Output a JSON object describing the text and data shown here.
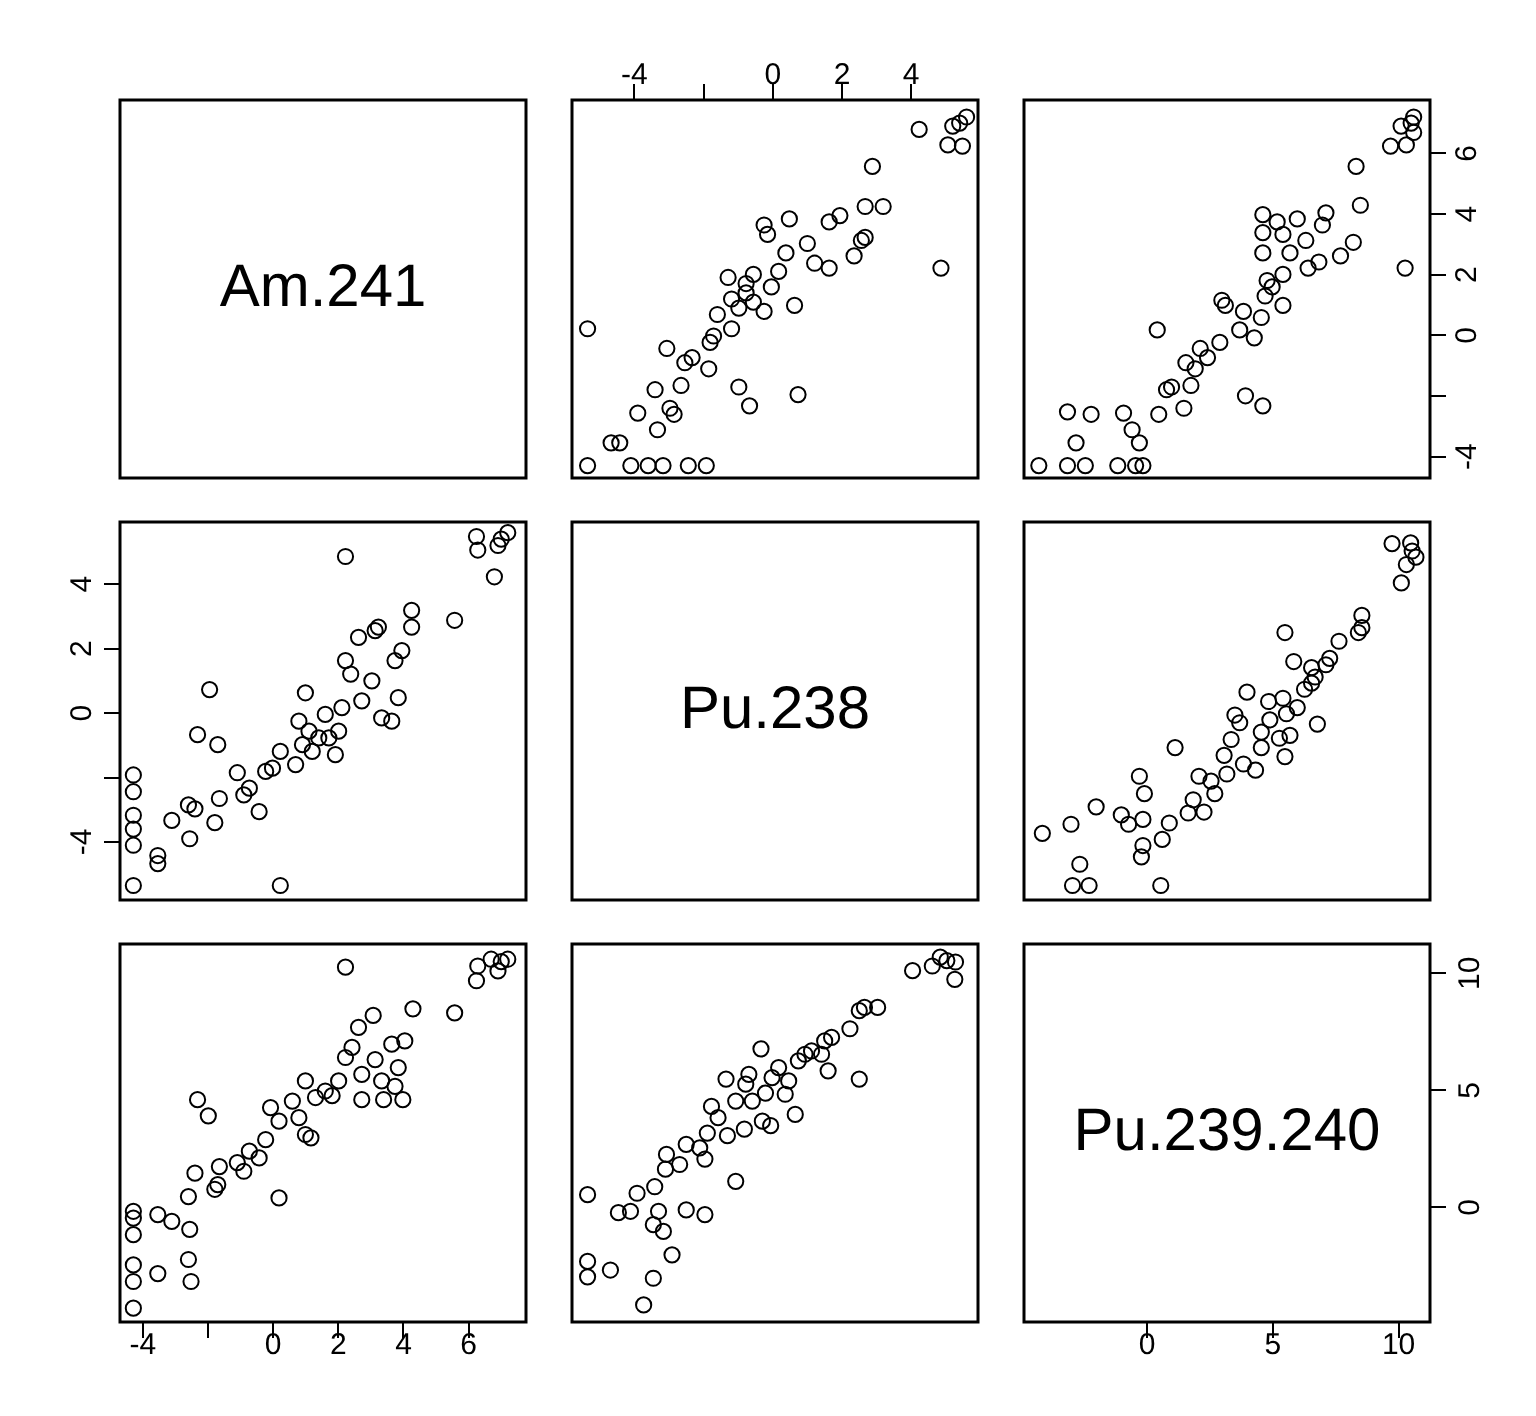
{
  "chart_data": [
    {
      "type": "other",
      "title": "Am.241"
    },
    {
      "type": "scatter",
      "color": "#000000",
      "marker": "circle",
      "tick_labels": "x",
      "xlim": [
        -5.8,
        5.93
      ],
      "ylim": [
        -4.7,
        7.76
      ],
      "xticks": [
        -4,
        {
          "value": -2,
          "label": null
        },
        0,
        2,
        4
      ],
      "x": [
        -1.92,
        -2.44,
        -3.17,
        -3.6,
        -4.1,
        -5.35,
        -4.42,
        -4.67,
        -3.33,
        -2.85,
        -3.9,
        -2.97,
        -0.67,
        0.73,
        -3.4,
        -0.98,
        -2.65,
        -1.85,
        -2.54,
        -2.33,
        -3.06,
        -1.81,
        -1.71,
        -1.19,
        -5.35,
        -1.6,
        -0.25,
        -0.98,
        0.63,
        -0.56,
        -1.19,
        -0.77,
        -0.04,
        -0.77,
        -1.29,
        -0.56,
        0.17,
        4.86,
        1.63,
        1.21,
        2.35,
        0.38,
        1.0,
        2.56,
        2.67,
        -0.15,
        -0.25,
        1.63,
        0.48,
        1.94,
        3.19,
        2.67,
        2.88,
        5.48,
        5.06,
        4.23,
        5.4,
        5.6,
        5.2
      ],
      "values": [
        -4.29,
        -4.29,
        -4.29,
        -4.29,
        -4.29,
        -4.29,
        -3.54,
        -3.54,
        -3.11,
        -2.6,
        -2.56,
        -2.4,
        -2.32,
        -1.95,
        -1.79,
        -1.7,
        -1.65,
        -1.1,
        -0.9,
        -0.73,
        -0.43,
        -0.23,
        -0.02,
        0.22,
        0.22,
        0.69,
        0.79,
        0.9,
        0.99,
        1.1,
        1.2,
        1.4,
        1.6,
        1.71,
        1.91,
        2.01,
        2.11,
        2.22,
        2.22,
        2.38,
        2.62,
        2.72,
        3.03,
        3.13,
        3.23,
        3.33,
        3.64,
        3.74,
        3.84,
        3.95,
        4.25,
        4.25,
        5.57,
        6.24,
        6.28,
        6.79,
        7.0,
        7.2,
        6.9
      ]
    },
    {
      "type": "scatter",
      "color": "#000000",
      "marker": "circle",
      "tick_labels": "y",
      "xlim": [
        -4.9,
        11.25
      ],
      "ylim": [
        -4.7,
        7.76
      ],
      "yticks": [
        -4,
        {
          "value": -2,
          "label": null
        },
        0,
        2,
        4,
        6
      ],
      "x": [
        -4.31,
        -3.17,
        -2.46,
        -1.17,
        -0.46,
        -0.17,
        -2.83,
        -0.31,
        -0.6,
        0.46,
        -0.94,
        -2.23,
        -3.17,
        1.46,
        4.6,
        3.91,
        0.77,
        0.97,
        1.74,
        1.91,
        1.54,
        2.4,
        2.11,
        2.89,
        4.26,
        0.4,
        3.68,
        4.54,
        3.83,
        5.4,
        3.11,
        2.97,
        4.69,
        4.97,
        4.77,
        5.4,
        10.26,
        6.4,
        6.83,
        7.69,
        4.6,
        5.68,
        8.2,
        6.31,
        5.4,
        4.6,
        6.97,
        5.17,
        5.97,
        4.6,
        7.11,
        8.48,
        8.31,
        9.68,
        10.31,
        10.6,
        10.5,
        10.6,
        10.1
      ],
      "values": [
        -4.29,
        -4.29,
        -4.29,
        -4.29,
        -4.29,
        -4.29,
        -3.54,
        -3.54,
        -3.11,
        -2.6,
        -2.56,
        -2.6,
        -2.52,
        -2.4,
        -2.32,
        -1.99,
        -1.79,
        -1.7,
        -1.65,
        -1.1,
        -0.9,
        -0.73,
        -0.43,
        -0.23,
        -0.08,
        0.18,
        0.18,
        0.59,
        0.79,
        0.99,
        0.99,
        1.16,
        1.3,
        1.6,
        1.81,
        2.01,
        2.22,
        2.22,
        2.42,
        2.62,
        2.72,
        2.72,
        3.07,
        3.13,
        3.33,
        3.39,
        3.64,
        3.74,
        3.84,
        3.98,
        4.04,
        4.29,
        5.57,
        6.24,
        6.28,
        6.69,
        7.0,
        7.2,
        6.9
      ]
    },
    {
      "type": "scatter",
      "color": "#000000",
      "marker": "circle",
      "tick_labels": "y",
      "xlim": [
        -4.7,
        7.76
      ],
      "ylim": [
        -5.8,
        5.93
      ],
      "yticks": [
        -4,
        {
          "value": -2,
          "label": null
        },
        0,
        2,
        4
      ],
      "x": [
        -4.29,
        -4.29,
        -4.29,
        -4.29,
        -4.29,
        -4.29,
        -3.54,
        -3.54,
        -3.11,
        -2.6,
        -2.56,
        -2.4,
        -2.32,
        -1.95,
        -1.79,
        -1.7,
        -1.65,
        -1.1,
        -0.9,
        -0.73,
        -0.43,
        -0.23,
        -0.02,
        0.22,
        0.22,
        0.69,
        0.79,
        0.9,
        0.99,
        1.1,
        1.2,
        1.4,
        1.6,
        1.71,
        1.91,
        2.01,
        2.11,
        2.22,
        2.22,
        2.38,
        2.62,
        2.72,
        3.03,
        3.13,
        3.23,
        3.33,
        3.64,
        3.74,
        3.84,
        3.95,
        4.25,
        4.25,
        5.57,
        6.24,
        6.28,
        6.79,
        7.0,
        7.2,
        6.9
      ],
      "values": [
        -1.92,
        -2.44,
        -3.17,
        -3.6,
        -4.1,
        -5.35,
        -4.42,
        -4.67,
        -3.33,
        -2.85,
        -3.9,
        -2.97,
        -0.67,
        0.73,
        -3.4,
        -0.98,
        -2.65,
        -1.85,
        -2.54,
        -2.33,
        -3.06,
        -1.81,
        -1.71,
        -1.19,
        -5.35,
        -1.6,
        -0.25,
        -0.98,
        0.63,
        -0.56,
        -1.19,
        -0.77,
        -0.04,
        -0.77,
        -1.29,
        -0.56,
        0.17,
        4.86,
        1.63,
        1.21,
        2.35,
        0.38,
        1.0,
        2.56,
        2.67,
        -0.15,
        -0.25,
        1.63,
        0.48,
        1.94,
        3.19,
        2.67,
        2.88,
        5.48,
        5.06,
        4.23,
        5.4,
        5.6,
        5.2
      ]
    },
    {
      "type": "other",
      "title": "Pu.238"
    },
    {
      "type": "scatter",
      "color": "#000000",
      "marker": "circle",
      "tick_labels": false,
      "xlim": [
        -4.9,
        11.25
      ],
      "ylim": [
        -5.8,
        5.93
      ],
      "x": [
        0.54,
        -2.31,
        -2.97,
        -2.68,
        -0.23,
        -0.17,
        0.6,
        -4.17,
        -3.03,
        0.88,
        -0.74,
        -0.17,
        -1.03,
        1.63,
        2.26,
        -2.03,
        1.83,
        -0.11,
        2.69,
        2.54,
        2.06,
        -0.31,
        3.17,
        4.31,
        3.83,
        5.48,
        3.06,
        1.11,
        4.54,
        3.34,
        5.26,
        5.68,
        4.54,
        6.77,
        3.68,
        4.88,
        3.49,
        5.54,
        5.97,
        4.83,
        5.4,
        3.97,
        6.26,
        6.54,
        6.68,
        6.54,
        7.11,
        5.83,
        7.26,
        7.63,
        5.48,
        8.4,
        8.54,
        8.54,
        10.11,
        10.31,
        10.69,
        10.54,
        10.48,
        9.74
      ],
      "values": [
        -5.35,
        -5.35,
        -5.35,
        -4.69,
        -4.46,
        -4.11,
        -3.92,
        -3.73,
        -3.45,
        -3.41,
        -3.45,
        -3.3,
        -3.16,
        -3.1,
        -3.07,
        -2.91,
        -2.69,
        -2.5,
        -2.5,
        -2.11,
        -1.96,
        -1.96,
        -1.89,
        -1.77,
        -1.58,
        -1.35,
        -1.31,
        -1.07,
        -1.07,
        -0.82,
        -0.78,
        -0.69,
        -0.59,
        -0.34,
        -0.3,
        -0.21,
        -0.06,
        -0.02,
        0.17,
        0.36,
        0.46,
        0.65,
        0.74,
        0.93,
        1.12,
        1.41,
        1.5,
        1.6,
        1.7,
        2.23,
        2.5,
        2.5,
        2.65,
        3.03,
        4.04,
        4.61,
        4.84,
        5.03,
        5.28,
        5.26
      ]
    },
    {
      "type": "scatter",
      "color": "#000000",
      "marker": "circle",
      "tick_labels": "x",
      "xlim": [
        -4.7,
        7.76
      ],
      "ylim": [
        -4.9,
        11.25
      ],
      "xticks": [
        -4,
        {
          "value": -2,
          "label": null
        },
        0,
        2,
        4,
        6
      ],
      "x": [
        -4.29,
        -4.29,
        -4.29,
        -4.29,
        -4.29,
        -4.29,
        -3.54,
        -3.54,
        -3.11,
        -2.6,
        -2.56,
        -2.6,
        -2.52,
        -2.4,
        -2.32,
        -1.99,
        -1.79,
        -1.7,
        -1.65,
        -1.1,
        -0.9,
        -0.73,
        -0.43,
        -0.23,
        -0.08,
        0.18,
        0.18,
        0.59,
        0.79,
        0.99,
        0.99,
        1.16,
        1.3,
        1.6,
        1.81,
        2.01,
        2.22,
        2.22,
        2.42,
        2.62,
        2.72,
        2.72,
        3.07,
        3.13,
        3.33,
        3.39,
        3.64,
        3.74,
        3.84,
        3.98,
        4.04,
        4.29,
        5.57,
        6.24,
        6.28,
        6.69,
        7.0,
        7.2,
        6.9
      ],
      "values": [
        -4.31,
        -3.17,
        -2.46,
        -1.17,
        -0.46,
        -0.17,
        -2.83,
        -0.31,
        -0.6,
        0.46,
        -0.94,
        -2.23,
        -3.17,
        1.46,
        4.6,
        3.91,
        0.77,
        0.97,
        1.74,
        1.91,
        1.54,
        2.4,
        2.11,
        2.89,
        4.26,
        0.4,
        3.68,
        4.54,
        3.83,
        5.4,
        3.11,
        2.97,
        4.69,
        4.97,
        4.77,
        5.4,
        10.26,
        6.4,
        6.83,
        7.69,
        4.6,
        5.68,
        8.2,
        6.31,
        5.4,
        4.6,
        6.97,
        5.17,
        5.97,
        4.6,
        7.11,
        8.48,
        8.31,
        9.68,
        10.31,
        10.6,
        10.5,
        10.6,
        10.1
      ]
    },
    {
      "type": "scatter",
      "color": "#000000",
      "marker": "circle",
      "tick_labels": false,
      "xlim": [
        -5.8,
        5.93
      ],
      "ylim": [
        -4.9,
        11.25
      ],
      "x": [
        -5.35,
        -5.35,
        -5.35,
        -4.69,
        -4.46,
        -4.11,
        -3.92,
        -3.73,
        -3.45,
        -3.41,
        -3.45,
        -3.3,
        -3.16,
        -3.1,
        -3.07,
        -2.91,
        -2.69,
        -2.5,
        -2.5,
        -2.11,
        -1.96,
        -1.96,
        -1.89,
        -1.77,
        -1.58,
        -1.35,
        -1.31,
        -1.07,
        -1.07,
        -0.82,
        -0.78,
        -0.69,
        -0.59,
        -0.34,
        -0.3,
        -0.21,
        -0.06,
        -0.02,
        0.17,
        0.36,
        0.46,
        0.65,
        0.74,
        0.93,
        1.12,
        1.41,
        1.5,
        1.6,
        1.7,
        2.23,
        2.5,
        2.5,
        2.65,
        3.03,
        4.04,
        4.61,
        4.84,
        5.03,
        5.28,
        5.26
      ],
      "values": [
        0.54,
        -2.31,
        -2.97,
        -2.68,
        -0.23,
        -0.17,
        0.6,
        -4.17,
        -3.03,
        0.88,
        -0.74,
        -0.17,
        -1.03,
        1.63,
        2.26,
        -2.03,
        1.83,
        -0.11,
        2.69,
        2.54,
        2.06,
        -0.31,
        3.17,
        4.31,
        3.83,
        5.48,
        3.06,
        1.11,
        4.54,
        3.34,
        5.26,
        5.68,
        4.54,
        6.77,
        3.68,
        4.88,
        3.49,
        5.54,
        5.97,
        4.83,
        5.4,
        3.97,
        6.26,
        6.54,
        6.68,
        6.54,
        7.11,
        5.83,
        7.26,
        7.63,
        5.48,
        8.4,
        8.54,
        8.54,
        10.11,
        10.31,
        10.69,
        10.54,
        10.48,
        9.74
      ]
    },
    {
      "type": "scatter",
      "title": "Pu.239.240",
      "xlim": [
        -4.9,
        11.25
      ],
      "ylim": [
        -4.9,
        11.25
      ],
      "xticks": [
        0,
        5,
        10
      ],
      "yticks": [
        0,
        5,
        10
      ]
    }
  ]
}
